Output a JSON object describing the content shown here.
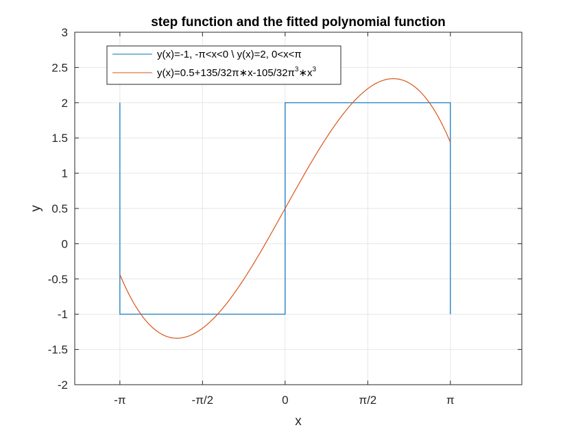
{
  "chart_data": {
    "type": "line",
    "title": "step function and the fitted polynomial function",
    "xlabel": "x",
    "ylabel": "y",
    "xlim": [
      -4.0,
      4.5
    ],
    "ylim": [
      -2,
      3
    ],
    "grid": true,
    "legend_placement": "top-left",
    "x_ticks": [
      {
        "value": -3.14159,
        "label": "-π"
      },
      {
        "value": -1.5708,
        "label": "-π/2"
      },
      {
        "value": 0,
        "label": "0"
      },
      {
        "value": 1.5708,
        "label": "π/2"
      },
      {
        "value": 3.14159,
        "label": "π"
      }
    ],
    "y_ticks": [
      {
        "value": 3,
        "label": "3"
      },
      {
        "value": 2.5,
        "label": "2.5"
      },
      {
        "value": 2,
        "label": "2"
      },
      {
        "value": 1.5,
        "label": "1.5"
      },
      {
        "value": 1,
        "label": "1"
      },
      {
        "value": 0.5,
        "label": "0.5"
      },
      {
        "value": 0,
        "label": "0"
      },
      {
        "value": -0.5,
        "label": "-0.5"
      },
      {
        "value": -1,
        "label": "-1"
      },
      {
        "value": -1.5,
        "label": "-1.5"
      },
      {
        "value": -2,
        "label": "-2"
      }
    ],
    "series": [
      {
        "name": "y(x)=-1, -π<x<0 \\ y(x)=2, 0<x<π",
        "color": "#0072BD",
        "x": [
          -3.14159,
          -3.14159,
          0,
          0,
          3.14159,
          3.14159
        ],
        "y": [
          2,
          -1,
          -1,
          2,
          2,
          -1
        ]
      },
      {
        "name": "y(x)=0.5+135/32π∗x-105/32π³∗x³",
        "name_parts": {
          "main": "y(x)=0.5+135/32π∗x-105/32π",
          "sup1": "3",
          "mid": "∗x",
          "sup2": "3"
        },
        "color": "#D95319",
        "formula": {
          "c0": 0.5,
          "c1": 1.34286,
          "c3": -0.10582
        },
        "x_range": [
          -3.14159,
          3.14159
        ]
      }
    ]
  }
}
